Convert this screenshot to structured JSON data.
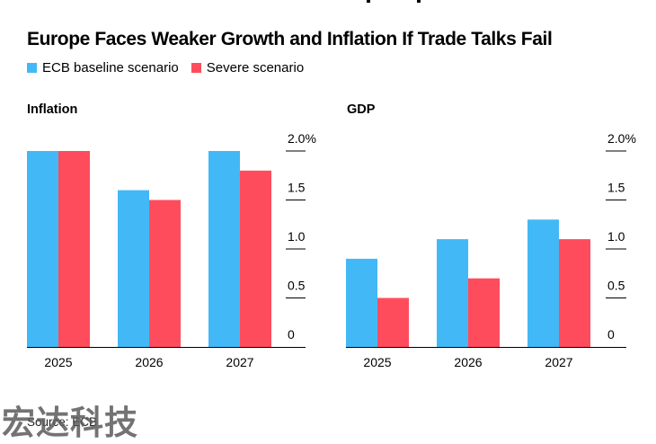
{
  "title": "Europe Faces Weaker Growth and Inflation If Trade Talks Fail",
  "legend": [
    {
      "label": "ECB baseline scenario",
      "color": "#43b8f6"
    },
    {
      "label": "Severe scenario",
      "color": "#ff4c5c"
    }
  ],
  "source": "Source: ECB",
  "watermark": "宏达科技",
  "chart_data": [
    {
      "type": "bar",
      "title": "Inflation",
      "categories": [
        "2025",
        "2026",
        "2027"
      ],
      "series": [
        {
          "name": "ECB baseline scenario",
          "color": "#43b8f6",
          "values": [
            2.0,
            1.6,
            2.0
          ]
        },
        {
          "name": "Severe scenario",
          "color": "#ff4c5c",
          "values": [
            2.0,
            1.5,
            1.8
          ]
        }
      ],
      "yticks": [
        "0",
        "0.5",
        "1.0",
        "1.5",
        "2.0%"
      ],
      "ylim": [
        0,
        2.0
      ],
      "y_axis_position": "right",
      "grid": false
    },
    {
      "type": "bar",
      "title": "GDP",
      "categories": [
        "2025",
        "2026",
        "2027"
      ],
      "series": [
        {
          "name": "ECB baseline scenario",
          "color": "#43b8f6",
          "values": [
            0.9,
            1.1,
            1.3
          ]
        },
        {
          "name": "Severe scenario",
          "color": "#ff4c5c",
          "values": [
            0.5,
            0.7,
            1.1
          ]
        }
      ],
      "yticks": [
        "0",
        "0.5",
        "1.0",
        "1.5",
        "2.0%"
      ],
      "ylim": [
        0,
        2.0
      ],
      "y_axis_position": "right",
      "grid": false
    }
  ]
}
